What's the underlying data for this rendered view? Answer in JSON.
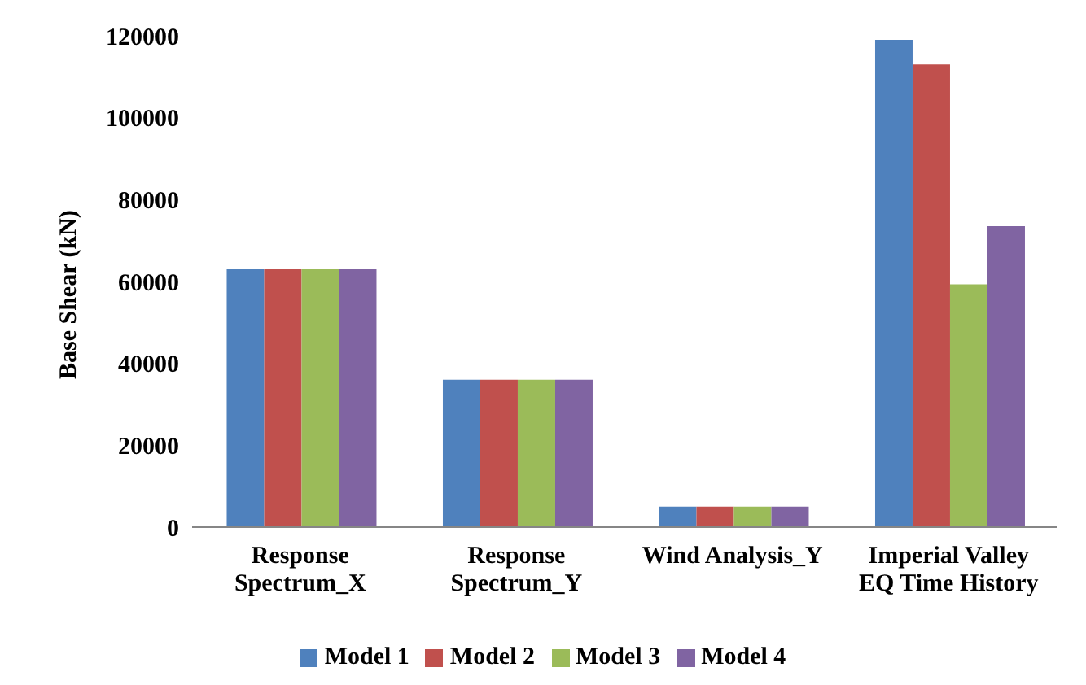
{
  "chart_data": {
    "type": "bar",
    "ylabel": "Base Shear (kN)",
    "categories": [
      "Response Spectrum_X",
      "Response Spectrum_Y",
      "Wind Analysis_Y",
      "Imperial Valley EQ Time History"
    ],
    "series": [
      {
        "name": "Model 1",
        "color": "#4f81bd",
        "values": [
          63000,
          36000,
          5000,
          119000
        ]
      },
      {
        "name": "Model 2",
        "color": "#c0504d",
        "values": [
          63000,
          36000,
          5000,
          113000
        ]
      },
      {
        "name": "Model 3",
        "color": "#9bbb59",
        "values": [
          63000,
          36000,
          5000,
          59300
        ]
      },
      {
        "name": "Model 4",
        "color": "#8064a2",
        "values": [
          63000,
          36000,
          5000,
          73500
        ]
      }
    ],
    "ylim": [
      0,
      120000
    ],
    "yticks": [
      0,
      20000,
      40000,
      60000,
      80000,
      100000,
      120000
    ],
    "grid": false,
    "legend": "bottom"
  }
}
